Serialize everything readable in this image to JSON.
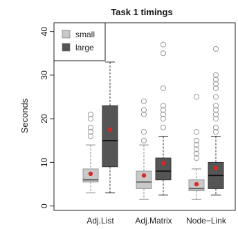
{
  "chart_data": {
    "type": "boxplot",
    "title": "Task 1 timings",
    "xlabel": "",
    "ylabel": "Seconds",
    "ylim": [
      -1,
      42
    ],
    "yticks": [
      0,
      10,
      20,
      30,
      40
    ],
    "categories": [
      "Adj.List",
      "Adj.Matrix",
      "Node−Link"
    ],
    "legend_position": "top-left",
    "series": [
      {
        "name": "small",
        "color": "#c9c9c9",
        "boxes": [
          {
            "whisker_low": 3,
            "q1": 5.5,
            "median": 6,
            "q3": 8.5,
            "whisker_high": 14,
            "mean": 7.4,
            "outliers": [
              16,
              17,
              18,
              20,
              21
            ]
          },
          {
            "whisker_low": 1.5,
            "q1": 4,
            "median": 5.5,
            "q3": 8,
            "whisker_high": 14,
            "mean": 7,
            "outliers": [
              15,
              17,
              21,
              22,
              24
            ]
          },
          {
            "whisker_low": 1.5,
            "q1": 3.5,
            "median": 4,
            "q3": 6,
            "whisker_high": 8.5,
            "mean": 5,
            "outliers": [
              11,
              12,
              13,
              14,
              15,
              17,
              25
            ]
          }
        ]
      },
      {
        "name": "large",
        "color": "#555555",
        "boxes": [
          {
            "whisker_low": 3,
            "q1": 9,
            "median": 15,
            "q3": 23,
            "whisker_high": 33,
            "mean": 17.5,
            "outliers": []
          },
          {
            "whisker_low": 2.5,
            "q1": 6,
            "median": 8,
            "q3": 11,
            "whisker_high": 16,
            "mean": 9.8,
            "outliers": [
              18,
              20,
              21,
              22,
              23,
              27,
              35,
              37
            ]
          },
          {
            "whisker_low": 2.5,
            "q1": 4,
            "median": 7,
            "q3": 10,
            "whisker_high": 16,
            "mean": 8.7,
            "outliers": [
              17,
              18,
              20,
              21,
              22,
              23,
              25,
              27,
              28,
              29,
              30,
              36
            ]
          }
        ]
      }
    ],
    "mean_marker_color": "#d42a2a",
    "grid": false
  }
}
